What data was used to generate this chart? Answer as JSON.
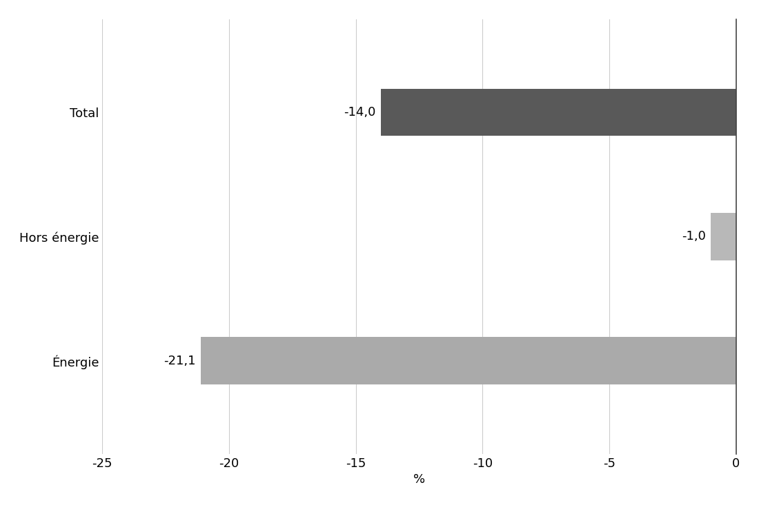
{
  "categories": [
    "Énergie",
    "Hors énergie",
    "Total"
  ],
  "values": [
    -21.1,
    -1.0,
    -14.0
  ],
  "bar_colors": [
    "#aaaaaa",
    "#b8b8b8",
    "#595959"
  ],
  "label_texts": [
    "-21,1",
    "-1,0",
    "-14,0"
  ],
  "xlabel": "%",
  "xlim": [
    -25,
    0
  ],
  "xticks": [
    -25,
    -20,
    -15,
    -10,
    -5,
    0
  ],
  "background_color": "#ffffff",
  "bar_height": 0.38,
  "label_fontsize": 13,
  "tick_fontsize": 13,
  "axis_label_fontsize": 13,
  "category_fontsize": 13,
  "grid_color": "#cccccc",
  "spine_color": "#444444",
  "ylim": [
    -0.75,
    2.75
  ]
}
